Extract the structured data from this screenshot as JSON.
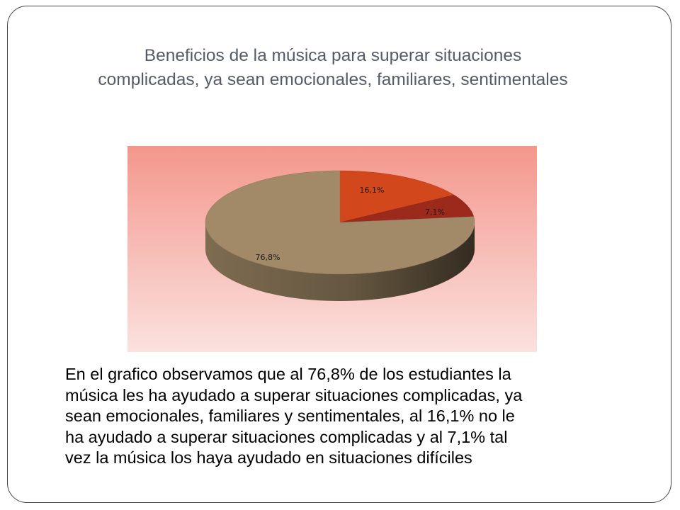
{
  "slide": {
    "title_line1": "Beneficios de la música para superar situaciones",
    "title_line2": "complicadas, ya sean emocionales, familiares, sentimentales",
    "body_text": "En el grafico observamos que al 76,8% de los estudiantes la\nmúsica les ha ayudado a superar situaciones complicadas, ya\nsean emocionales, familiares y sentimentales, al 16,1% no le\nha ayudado a superar situaciones complicadas y al 7,1%  tal\nvez la música los haya ayudado en situaciones difíciles"
  },
  "chart_data": {
    "type": "pie",
    "three_d": true,
    "legend": "none",
    "slices": [
      {
        "value": 16.1,
        "label": "16,1%",
        "color": "#d2481c"
      },
      {
        "value": 7.1,
        "label": "7,1%",
        "color": "#9b2a1c"
      },
      {
        "value": 76.8,
        "label": "76,8%",
        "color": "#a28a68"
      }
    ],
    "background_colors": [
      "#f4978b",
      "#fbe1de"
    ]
  }
}
